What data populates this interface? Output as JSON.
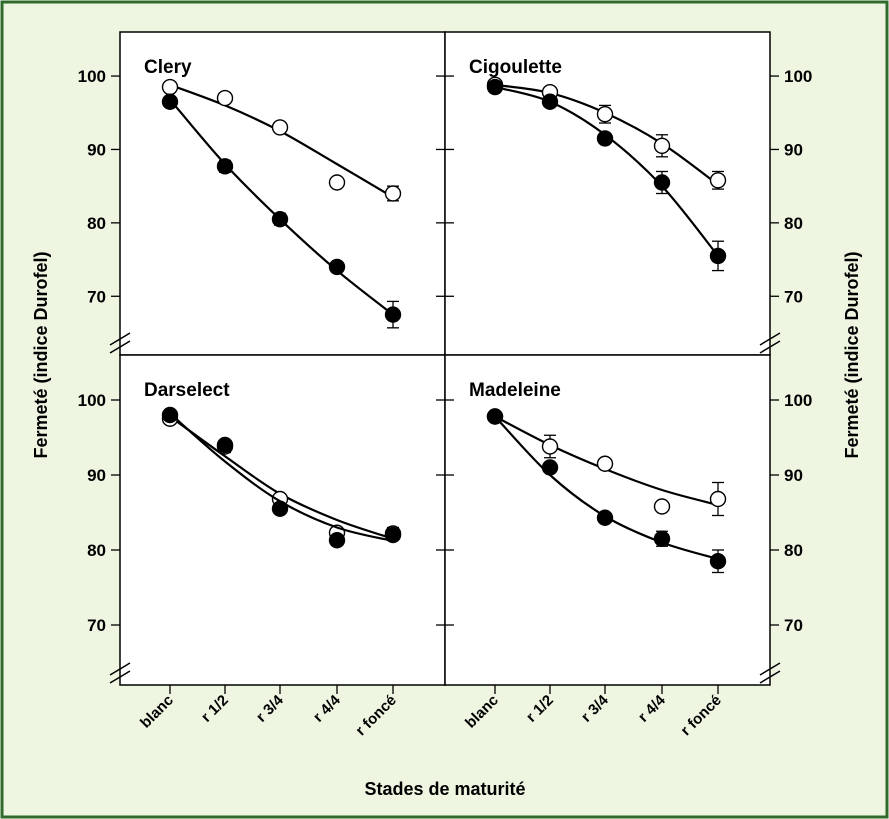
{
  "figure": {
    "ylabel": "Fermeté (indice Durofel)",
    "xlabel": "Stades de maturité",
    "background_color": "#eef6e2",
    "border_color": "#2f6b2a",
    "marker_open_fill": "#ffffff",
    "marker_filled_fill": "#000000"
  },
  "chart_data": [
    {
      "type": "scatter",
      "title": "Clery",
      "categories": [
        "blanc",
        "r 1/2",
        "r 3/4",
        "r 4/4",
        "r foncé"
      ],
      "yticks": [
        70,
        80,
        90,
        100
      ],
      "ylim": [
        62,
        106
      ],
      "grid": false,
      "series": [
        {
          "marker": "open",
          "values": [
            98.5,
            97.0,
            93.0,
            85.5,
            84.0
          ],
          "errors": [
            0.5,
            0.5,
            0.6,
            0.5,
            1.0
          ],
          "fit": [
            98.8,
            96.0,
            92.5,
            88.0,
            83.5
          ]
        },
        {
          "marker": "filled",
          "values": [
            96.5,
            87.7,
            80.5,
            74.0,
            67.5
          ],
          "errors": [
            0.5,
            0.8,
            0.8,
            0.6,
            1.8
          ],
          "fit": [
            96.8,
            88.0,
            80.5,
            73.5,
            67.5
          ]
        }
      ]
    },
    {
      "type": "scatter",
      "title": "Cigoulette",
      "categories": [
        "blanc",
        "r 1/2",
        "r 3/4",
        "r 4/4",
        "r foncé"
      ],
      "yticks": [
        70,
        80,
        90,
        100
      ],
      "ylim": [
        62,
        106
      ],
      "grid": false,
      "series": [
        {
          "marker": "open",
          "values": [
            98.8,
            97.8,
            94.8,
            90.5,
            85.8
          ],
          "errors": [
            0.5,
            0.5,
            1.2,
            1.5,
            1.2
          ],
          "fit": [
            98.8,
            97.7,
            95.0,
            90.8,
            85.2
          ]
        },
        {
          "marker": "filled",
          "values": [
            98.5,
            96.5,
            91.5,
            85.5,
            75.5
          ],
          "errors": [
            0.5,
            0.5,
            0.7,
            1.5,
            2.0
          ],
          "fit": [
            98.5,
            96.5,
            92.0,
            85.0,
            75.5
          ]
        }
      ]
    },
    {
      "type": "scatter",
      "title": "Darselect",
      "categories": [
        "blanc",
        "r 1/2",
        "r 3/4",
        "r 4/4",
        "r foncé"
      ],
      "yticks": [
        70,
        80,
        90,
        100
      ],
      "ylim": [
        62,
        106
      ],
      "grid": false,
      "series": [
        {
          "marker": "open",
          "values": [
            97.5,
            93.8,
            86.8,
            82.3,
            82.2
          ],
          "errors": [
            0.5,
            0.8,
            0.6,
            0.5,
            0.8
          ],
          "fit": [
            97.8,
            92.5,
            87.5,
            84.0,
            81.5
          ]
        },
        {
          "marker": "filled",
          "values": [
            98.0,
            94.0,
            85.5,
            81.3,
            82.0
          ],
          "errors": [
            0.5,
            0.5,
            0.5,
            0.5,
            0.5
          ],
          "fit": [
            98.2,
            91.8,
            86.5,
            83.0,
            81.2
          ]
        }
      ]
    },
    {
      "type": "scatter",
      "title": "Madeleine",
      "categories": [
        "blanc",
        "r 1/2",
        "r 3/4",
        "r 4/4",
        "r foncé"
      ],
      "yticks": [
        70,
        80,
        90,
        100
      ],
      "ylim": [
        62,
        106
      ],
      "grid": false,
      "series": [
        {
          "marker": "open",
          "values": [
            97.8,
            93.8,
            91.5,
            85.8,
            86.8
          ],
          "errors": [
            0.5,
            1.5,
            0.6,
            0.5,
            2.2
          ],
          "fit": [
            97.8,
            94.0,
            90.8,
            88.0,
            86.0
          ]
        },
        {
          "marker": "filled",
          "values": [
            97.8,
            91.0,
            84.3,
            81.5,
            78.5
          ],
          "errors": [
            0.5,
            0.6,
            0.6,
            1.0,
            1.5
          ],
          "fit": [
            97.8,
            90.0,
            84.5,
            81.0,
            78.8
          ]
        }
      ]
    }
  ]
}
